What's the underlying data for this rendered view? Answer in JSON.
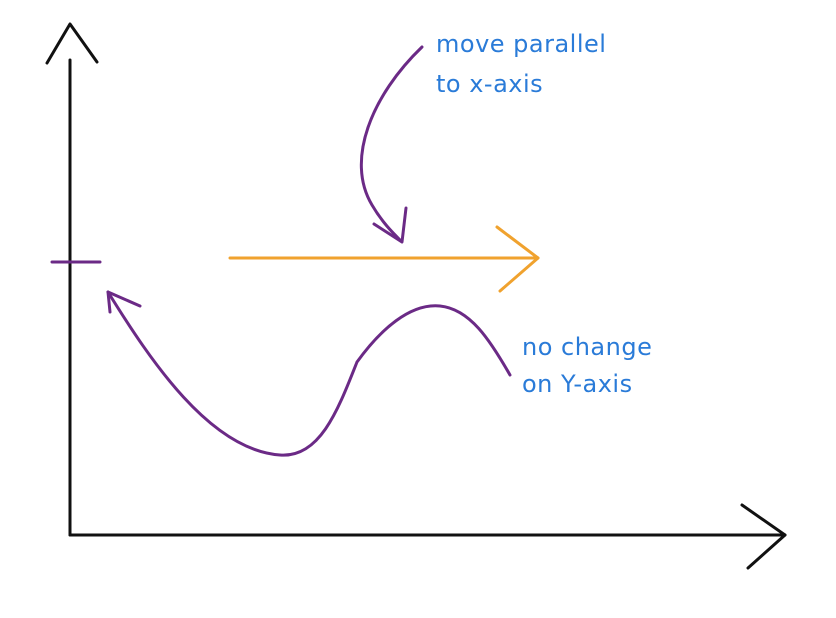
{
  "annotations": {
    "top_note": [
      "move parallel",
      "to x-axis"
    ],
    "bottom_note": [
      "no change",
      "on Y-axis"
    ]
  },
  "colors": {
    "axes": "#111111",
    "curve": "#6b2a86",
    "shift_arrow": "#f0a22e",
    "text": "#2a7bd8"
  },
  "icons": {
    "shift_arrow": "right-arrow",
    "curve_arrowhead": "arrowhead"
  }
}
